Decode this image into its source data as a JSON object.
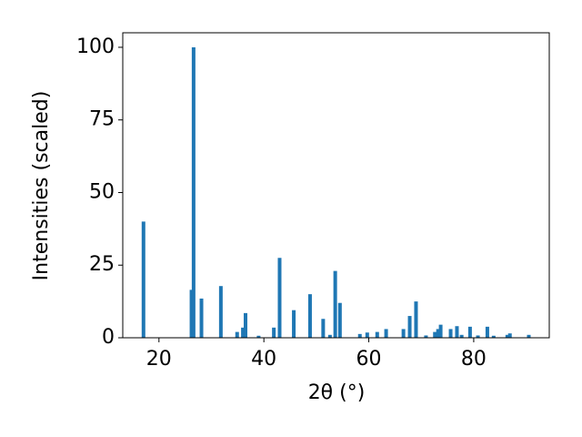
{
  "chart_data": {
    "type": "bar",
    "xlabel": "2θ (°)",
    "ylabel": "Intensities (scaled)",
    "x": [
      17.05,
      26.2,
      26.6,
      28.1,
      31.8,
      34.9,
      36.0,
      36.5,
      39.0,
      41.9,
      43.0,
      45.7,
      48.8,
      51.3,
      52.6,
      53.6,
      54.5,
      58.3,
      59.7,
      61.6,
      63.3,
      66.6,
      67.8,
      69.0,
      70.9,
      72.6,
      73.2,
      73.7,
      75.6,
      76.8,
      77.7,
      79.3,
      80.8,
      82.6,
      83.8,
      86.4,
      86.9,
      90.5
    ],
    "values": [
      40,
      16.5,
      100,
      13.5,
      17.8,
      2,
      3.5,
      8.5,
      0.7,
      3.5,
      27.5,
      9.5,
      15,
      6.5,
      1,
      23,
      12,
      1.3,
      1.8,
      2,
      3,
      3,
      7.5,
      12.5,
      0.8,
      2,
      3,
      4.5,
      3,
      4,
      1,
      3.8,
      0.8,
      3.8,
      0.7,
      1,
      1.5,
      1
    ],
    "color": "#1f77b4",
    "xlim": [
      13.1,
      94.4
    ],
    "ylim": [
      0,
      105
    ],
    "xticks": [
      20,
      40,
      60,
      80
    ],
    "yticks": [
      0,
      25,
      50,
      75,
      100
    ]
  }
}
